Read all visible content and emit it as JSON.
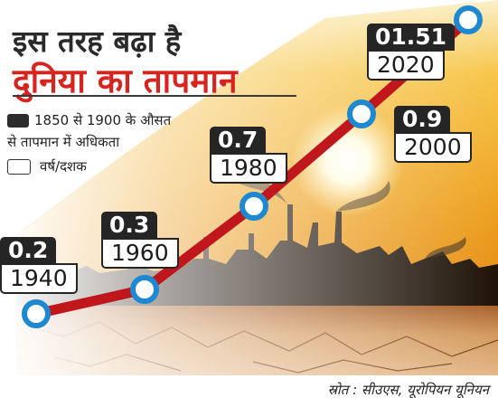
{
  "title_line1": "इस तरह बढ़ा है",
  "title_line2": "दुनिया का तापमान",
  "legend": {
    "dark_label_line1": "1850 से 1900 के औसत",
    "dark_label_line2": "से तापमान में अधिकता",
    "light_label": "वर्ष/दशक"
  },
  "source": "स्रोत : सीउएस, यूरोपियन यूनियन",
  "colors": {
    "line": "#c0171c",
    "marker_fill": "#ffffff",
    "marker_stroke": "#1e88d0",
    "title_accent": "#d8241e"
  },
  "chart_data": {
    "type": "line",
    "x": [
      1940,
      1960,
      1980,
      2000,
      2020
    ],
    "y": [
      0.2,
      0.3,
      0.7,
      0.9,
      1.51
    ],
    "value_labels": [
      "0.2",
      "0.3",
      "0.7",
      "0.9",
      "01.51"
    ],
    "year_labels": [
      "1940",
      "1960",
      "1980",
      "2000",
      "2020"
    ],
    "ylabel": "1850 से 1900 के औसत से तापमान में अधिकता",
    "xlabel": "वर्ष/दशक"
  }
}
